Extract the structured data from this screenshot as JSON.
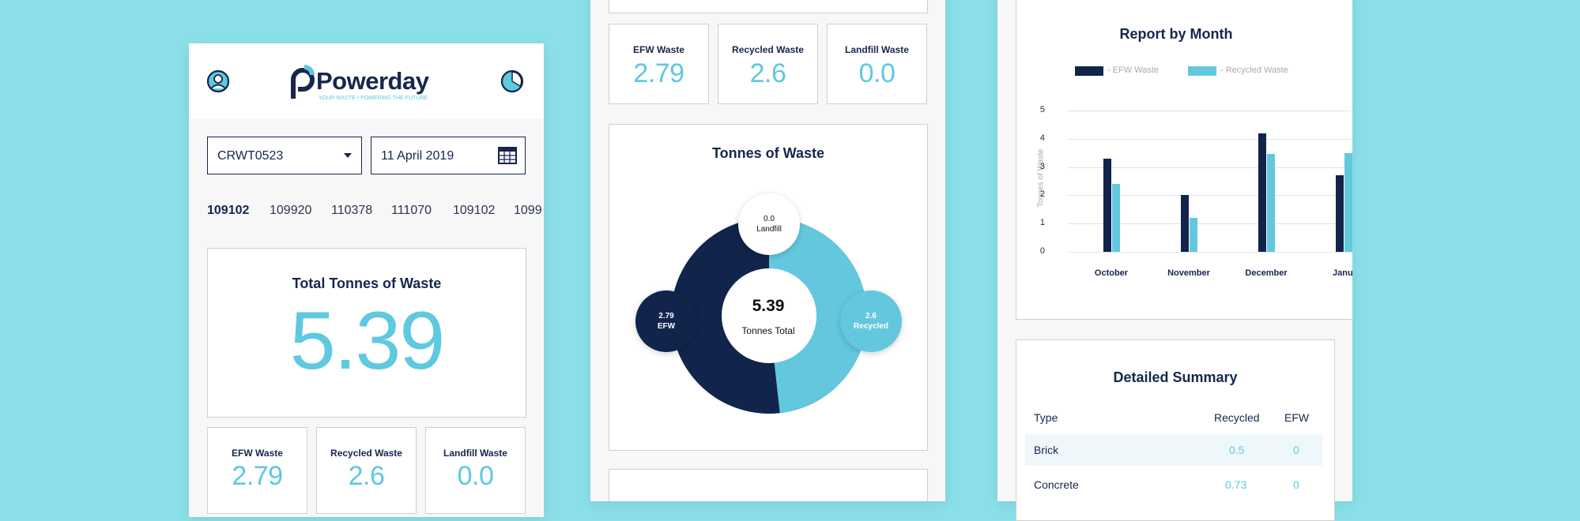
{
  "app": {
    "brand": "Powerday",
    "tagline": "YOUR WASTE • POWERING THE FUTURE"
  },
  "filters": {
    "site": "CRWT0523",
    "date": "11 April 2019"
  },
  "tickets": [
    "109102",
    "109920",
    "110378",
    "111070",
    "109102",
    "1099"
  ],
  "total": {
    "title": "Total Tonnes of Waste",
    "value": "5.39"
  },
  "metrics": [
    {
      "label": "EFW Waste",
      "value": "2.79"
    },
    {
      "label": "Recycled Waste",
      "value": "2.6"
    },
    {
      "label": "Landfill Waste",
      "value": "0.0"
    }
  ],
  "donut": {
    "title": "Tonnes of Waste",
    "center_value": "5.39",
    "center_label": "Tonnes Total",
    "segments": [
      {
        "label": "EFW",
        "value": "2.79",
        "color": "#10244c"
      },
      {
        "label": "Recycled",
        "value": "2.6",
        "color": "#63c8de"
      },
      {
        "label": "Landfill",
        "value": "0.0",
        "color": "#ffffff"
      }
    ]
  },
  "chart_data": {
    "type": "bar",
    "title": "Report by Month",
    "ylabel": "Tonnes of Waste",
    "xlabel": "",
    "categories": [
      "October",
      "November",
      "December",
      "Janu"
    ],
    "series": [
      {
        "name": "EFW Waste",
        "values": [
          3.3,
          2.0,
          4.2,
          2.7
        ],
        "color": "#10244c"
      },
      {
        "name": "Recycled Waste",
        "values": [
          2.4,
          1.2,
          3.45,
          3.5
        ],
        "color": "#63c8de"
      }
    ],
    "ylim": [
      0,
      5
    ],
    "yticks": [
      "0",
      "1",
      "2",
      "3",
      "4",
      "5"
    ],
    "legend_position": "top",
    "grid": true
  },
  "summary": {
    "title": "Detailed Summary",
    "columns": [
      "Type",
      "Recycled",
      "EFW"
    ],
    "rows": [
      {
        "type": "Brick",
        "recycled": "0.5",
        "efw": "0"
      },
      {
        "type": "Concrete",
        "recycled": "0.73",
        "efw": "0"
      }
    ]
  }
}
